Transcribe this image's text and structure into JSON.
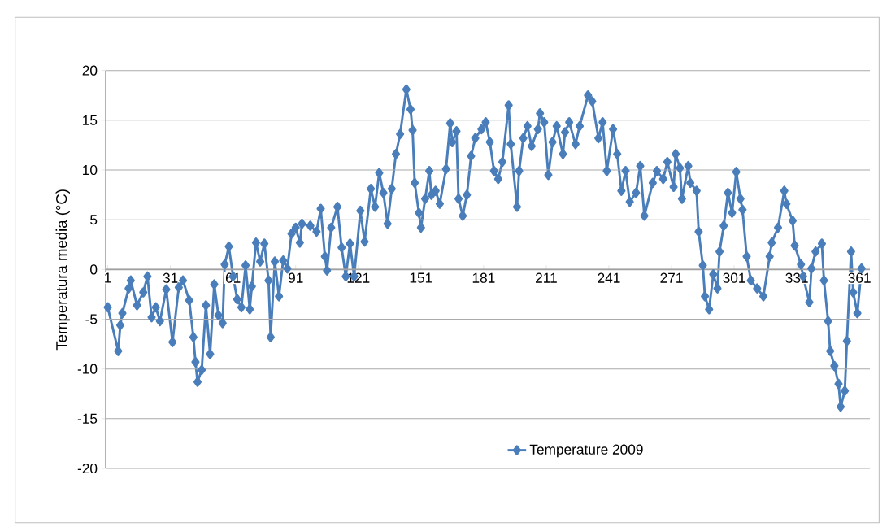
{
  "chart_data": {
    "type": "line",
    "ylabel": "Temperatura media (°C)",
    "x": [
      1,
      6,
      7,
      8,
      11,
      12,
      15,
      18,
      20,
      22,
      24,
      26,
      29,
      32,
      35,
      37,
      40,
      42,
      43,
      44,
      46,
      48,
      50,
      52,
      54,
      56,
      57,
      59,
      61,
      63,
      65,
      67,
      69,
      70,
      72,
      74,
      76,
      78,
      79,
      81,
      83,
      85,
      87,
      89,
      91,
      93,
      94,
      98,
      101,
      103,
      105,
      106,
      108,
      111,
      113,
      115,
      117,
      119,
      122,
      124,
      127,
      129,
      131,
      133,
      135,
      137,
      139,
      141,
      144,
      146,
      147,
      148,
      150,
      151,
      153,
      155,
      156,
      158,
      160,
      163,
      165,
      166,
      168,
      169,
      171,
      173,
      175,
      177,
      180,
      182,
      184,
      186,
      188,
      190,
      193,
      194,
      197,
      198,
      200,
      202,
      204,
      207,
      208,
      210,
      212,
      214,
      216,
      219,
      220,
      222,
      225,
      227,
      231,
      233,
      236,
      238,
      240,
      243,
      245,
      247,
      249,
      251,
      254,
      256,
      258,
      262,
      264,
      267,
      269,
      272,
      273,
      275,
      276,
      279,
      280,
      283,
      284,
      286,
      287,
      289,
      291,
      293,
      294,
      296,
      298,
      300,
      302,
      304,
      305,
      307,
      309,
      312,
      315,
      318,
      319,
      322,
      325,
      326,
      329,
      330,
      333,
      334,
      337,
      338,
      340,
      343,
      344,
      346,
      347,
      349,
      351,
      352,
      354,
      355,
      357,
      358,
      360,
      362
    ],
    "series": [
      {
        "name": "Temperature 2009",
        "color": "#4a7ebb",
        "values": [
          -3.8,
          -8.2,
          -5.6,
          -4.4,
          -1.9,
          -1.1,
          -3.6,
          -2.3,
          -0.7,
          -4.8,
          -3.8,
          -5.2,
          -2.0,
          -7.3,
          -1.8,
          -1.1,
          -3.1,
          -6.8,
          -9.3,
          -11.3,
          -10.1,
          -3.6,
          -8.5,
          -1.5,
          -4.6,
          -5.4,
          0.5,
          2.3,
          -0.7,
          -3.0,
          -3.8,
          0.4,
          -4.0,
          -1.7,
          2.7,
          0.8,
          2.6,
          -1.1,
          -6.8,
          0.8,
          -2.7,
          0.9,
          0.1,
          3.6,
          4.2,
          2.7,
          4.6,
          4.4,
          3.8,
          6.1,
          1.3,
          -0.1,
          4.2,
          6.3,
          2.2,
          -0.7,
          2.6,
          -0.7,
          5.9,
          2.8,
          8.1,
          6.3,
          9.7,
          7.7,
          4.6,
          8.1,
          11.6,
          13.6,
          18.1,
          16.1,
          14.0,
          8.7,
          5.7,
          4.2,
          7.1,
          9.9,
          7.5,
          7.9,
          6.6,
          10.1,
          14.7,
          12.8,
          13.9,
          7.1,
          5.4,
          7.5,
          11.4,
          13.2,
          14.1,
          14.8,
          12.8,
          9.9,
          9.1,
          10.8,
          16.5,
          12.6,
          6.3,
          9.9,
          13.2,
          14.4,
          12.4,
          14.1,
          15.7,
          14.8,
          9.5,
          12.8,
          14.4,
          11.6,
          13.8,
          14.8,
          12.6,
          14.4,
          17.5,
          16.9,
          13.2,
          14.8,
          9.9,
          14.1,
          11.6,
          7.9,
          9.9,
          6.8,
          7.7,
          10.4,
          5.4,
          8.7,
          9.9,
          9.1,
          10.8,
          8.3,
          11.6,
          10.2,
          7.1,
          10.4,
          8.7,
          7.9,
          3.8,
          0.4,
          -2.7,
          -4.0,
          -0.5,
          -1.9,
          1.8,
          4.4,
          7.7,
          5.7,
          9.8,
          7.1,
          6.0,
          1.3,
          -1.1,
          -1.9,
          -2.7,
          1.3,
          2.7,
          4.2,
          7.9,
          6.6,
          4.9,
          2.4,
          0.5,
          -0.7,
          -3.3,
          0.1,
          1.8,
          2.6,
          -1.1,
          -5.2,
          -8.2,
          -9.7,
          -11.5,
          -13.8,
          -12.2,
          -7.2,
          1.8,
          -2.3,
          -4.4,
          0.1
        ]
      }
    ],
    "xlim": [
      0,
      366
    ],
    "xticks": [
      1,
      31,
      61,
      91,
      121,
      151,
      181,
      211,
      241,
      271,
      301,
      331,
      361
    ],
    "ylim": [
      -20,
      20
    ],
    "yticks": [
      -20,
      -15,
      -10,
      -5,
      0,
      5,
      10,
      15,
      20
    ],
    "grid": "y",
    "legend": "bottom right",
    "marker": "diamond",
    "line_style": "solid"
  }
}
